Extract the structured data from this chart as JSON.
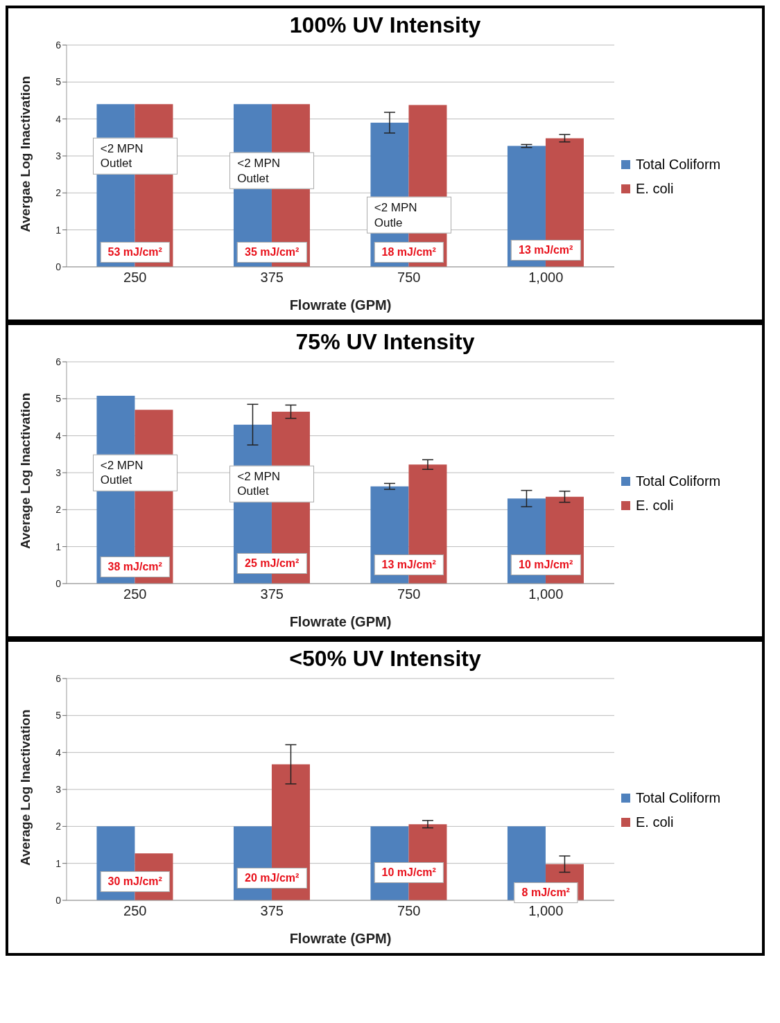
{
  "chart_data": [
    {
      "type": "bar",
      "title": "100% UV Intensity",
      "xlabel": "Flowrate (GPM)",
      "ylabel": "Avergae Log Inactivation",
      "categories": [
        "250",
        "375",
        "750",
        "1,000"
      ],
      "series": [
        {
          "name": "Total Coliform",
          "color": "#4f81bd",
          "values": [
            4.4,
            4.4,
            3.9,
            3.27
          ],
          "errors": [
            null,
            null,
            0.28,
            0.04
          ]
        },
        {
          "name": "E. coli",
          "color": "#c0504d",
          "values": [
            4.4,
            4.4,
            4.38,
            3.48
          ],
          "errors": [
            null,
            null,
            null,
            0.1
          ]
        }
      ],
      "ylim": [
        0,
        6
      ],
      "yticks": [
        0,
        1,
        2,
        3,
        4,
        5,
        6
      ],
      "grid": "y",
      "legend": "right",
      "annotations": [
        {
          "text": "<2 MPN Outlet",
          "x": "250",
          "y": 3
        },
        {
          "text": "<2 MPN Outlet",
          "x": "375",
          "y": 2.6
        },
        {
          "text": "<2 MPN Outle",
          "x": "750",
          "y": 1.4
        },
        {
          "text": "53 mJ/cm²",
          "x": "250",
          "y": 0.4
        },
        {
          "text": "35 mJ/cm²",
          "x": "375",
          "y": 0.4
        },
        {
          "text": "18 mJ/cm²",
          "x": "750",
          "y": 0.4
        },
        {
          "text": "13 mJ/cm²",
          "x": "1,000",
          "y": 0.45
        }
      ]
    },
    {
      "type": "bar",
      "title": "75% UV Intensity",
      "xlabel": "Flowrate (GPM)",
      "ylabel": "Average Log Inactivation",
      "categories": [
        "250",
        "375",
        "750",
        "1,000"
      ],
      "series": [
        {
          "name": "Total Coliform",
          "color": "#4f81bd",
          "values": [
            5.08,
            4.3,
            2.63,
            2.3
          ],
          "errors": [
            null,
            0.55,
            0.08,
            0.22
          ]
        },
        {
          "name": "E. coli",
          "color": "#c0504d",
          "values": [
            4.7,
            4.65,
            3.22,
            2.35
          ],
          "errors": [
            null,
            0.18,
            0.13,
            0.15
          ]
        }
      ],
      "ylim": [
        0,
        6
      ],
      "yticks": [
        0,
        1,
        2,
        3,
        4,
        5,
        6
      ],
      "grid": "y",
      "legend": "right",
      "annotations": [
        {
          "text": "<2 MPN Outlet",
          "x": "250",
          "y": 3
        },
        {
          "text": "<2 MPN Outlet",
          "x": "375",
          "y": 2.7
        },
        {
          "text": "38 mJ/cm²",
          "x": "250",
          "y": 0.45
        },
        {
          "text": "25 mJ/cm²",
          "x": "375",
          "y": 0.55
        },
        {
          "text": "13 mJ/cm²",
          "x": "750",
          "y": 0.5
        },
        {
          "text": "10 mJ/cm²",
          "x": "1,000",
          "y": 0.5
        }
      ]
    },
    {
      "type": "bar",
      "title": "<50% UV Intensity",
      "xlabel": "Flowrate (GPM)",
      "ylabel": "Average Log Inactivation",
      "categories": [
        "250",
        "375",
        "750",
        "1,000"
      ],
      "series": [
        {
          "name": "Total Coliform",
          "color": "#4f81bd",
          "values": [
            2,
            2,
            2,
            2
          ]
        },
        {
          "name": "E. coli",
          "color": "#c0504d",
          "values": [
            1.27,
            3.68,
            2.06,
            0.98
          ],
          "errors": [
            null,
            0.53,
            0.1,
            0.22
          ]
        }
      ],
      "ylim": [
        0,
        6
      ],
      "yticks": [
        0,
        1,
        2,
        3,
        4,
        5,
        6
      ],
      "grid": "y",
      "legend": "right",
      "annotations": [
        {
          "text": "30 mJ/cm²",
          "x": "250",
          "y": 0.5
        },
        {
          "text": "20 mJ/cm²",
          "x": "375",
          "y": 0.6
        },
        {
          "text": "10 mJ/cm²",
          "x": "750",
          "y": 0.75
        },
        {
          "text": "8 mJ/cm²",
          "x": "1,000",
          "y": 0.2
        }
      ]
    }
  ]
}
